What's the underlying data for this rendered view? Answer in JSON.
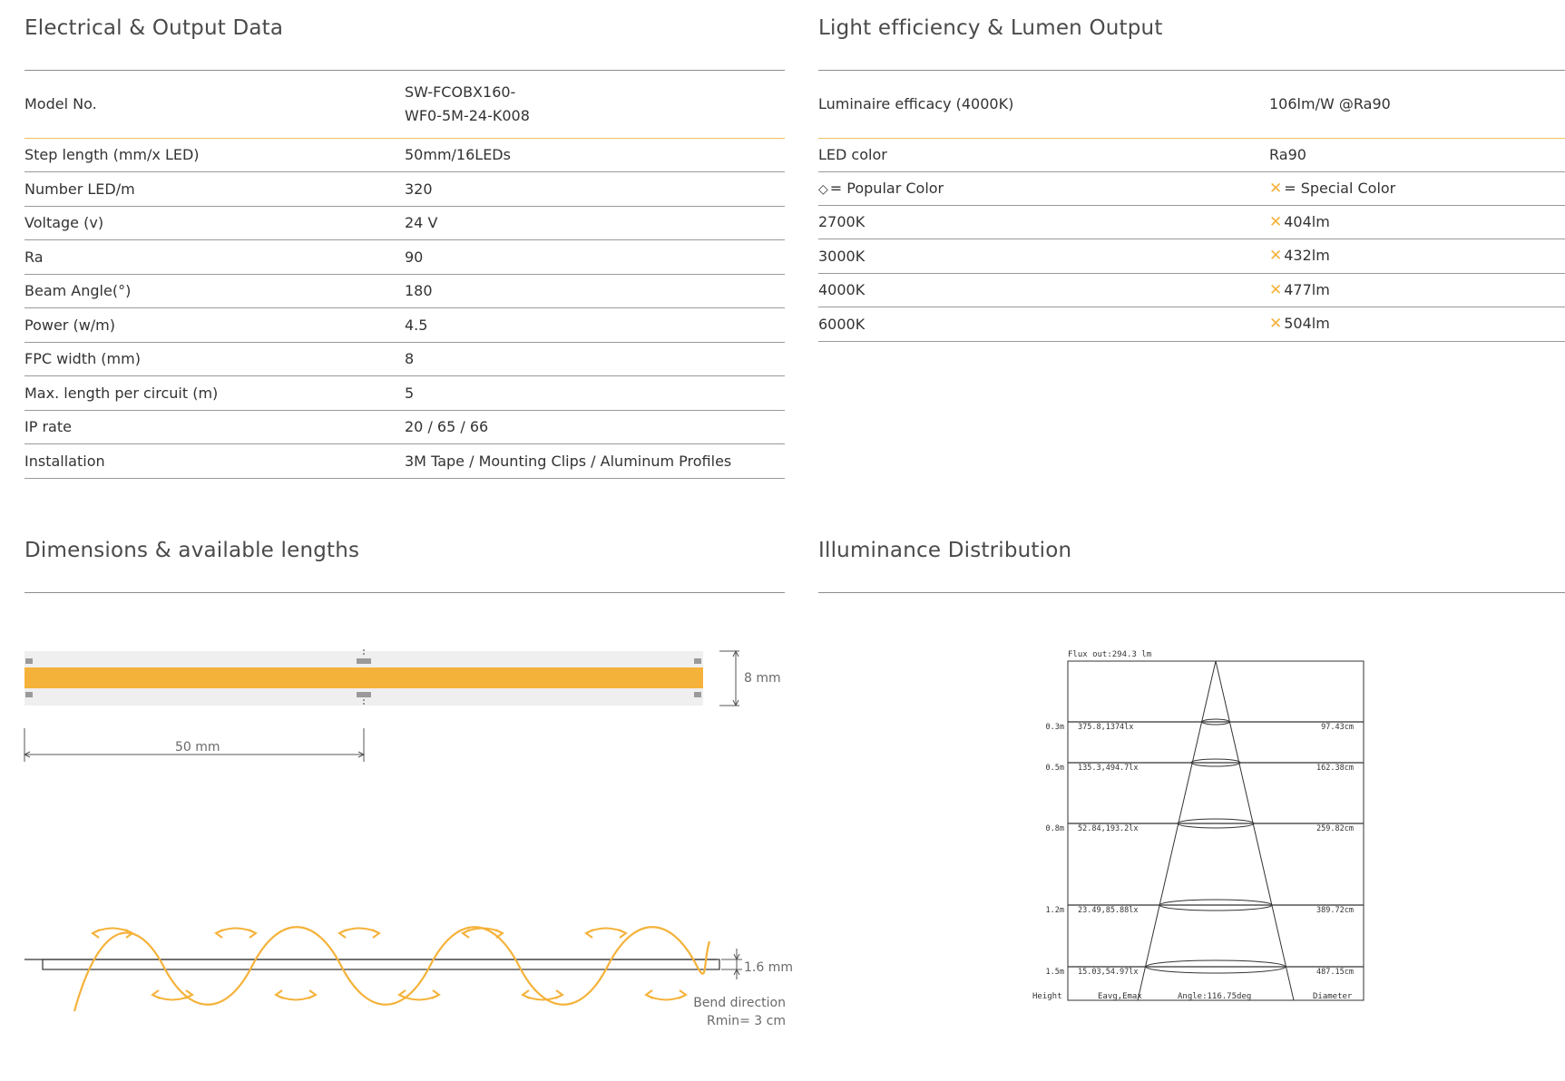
{
  "electrical": {
    "title": "Electrical & Output Data",
    "rows": [
      {
        "label": "Model No.",
        "value": "SW-FCOBX160-\nWF0-5M-24-K008"
      },
      {
        "label": "Step length (mm/x LED)",
        "value": "50mm/16LEDs"
      },
      {
        "label": "Number LED/m",
        "value": "320"
      },
      {
        "label": "Voltage (v)",
        "value": "24 V"
      },
      {
        "label": "Ra",
        "value": "90"
      },
      {
        "label": "Beam Angle(°)",
        "value": "180"
      },
      {
        "label": "Power (w/m)",
        "value": "4.5"
      },
      {
        "label": "FPC width (mm)",
        "value": "8"
      },
      {
        "label": "Max. length per circuit (m)",
        "value": "5"
      },
      {
        "label": "IP rate",
        "value": "20 / 65 / 66"
      },
      {
        "label": "Installation",
        "value": "3M Tape / Mounting Clips / Aluminum Profiles"
      }
    ]
  },
  "lumen": {
    "title": "Light efficiency & Lumen Output",
    "efficacy_label": "Luminaire efficacy (4000K)",
    "efficacy_value": "106lm/W @Ra90",
    "led_color_label": "LED color",
    "led_color_value": "Ra90",
    "legend_popular": "= Popular Color",
    "legend_special": "= Special Color",
    "cct_rows": [
      {
        "cct": "2700K",
        "lumen": "404lm"
      },
      {
        "cct": "3000K",
        "lumen": "432lm"
      },
      {
        "cct": "4000K",
        "lumen": "477lm"
      },
      {
        "cct": "6000K",
        "lumen": "504lm"
      }
    ]
  },
  "dimensions": {
    "title": "Dimensions & available lengths",
    "width_label": "8 mm",
    "step_label": "50 mm",
    "thickness_label": "1.6 mm",
    "bend_label": "Bend direction",
    "bend_radius": "Rmin= 3 cm"
  },
  "illuminance": {
    "title": "Illuminance Distribution",
    "flux": "Flux out:294.3 lm",
    "height_header": "Height",
    "eavg_header": "Eavg,Emax",
    "angle": "Angle:116.75deg",
    "diameter_header": "Diameter",
    "rows": [
      {
        "height": "0.3m",
        "lux": "375.8,1374lx",
        "diameter": "97.43cm"
      },
      {
        "height": "0.5m",
        "lux": "135.3,494.7lx",
        "diameter": "162.38cm"
      },
      {
        "height": "0.8m",
        "lux": "52.84,193.2lx",
        "diameter": "259.82cm"
      },
      {
        "height": "1.2m",
        "lux": "23.49,85.88lx",
        "diameter": "389.72cm"
      },
      {
        "height": "1.5m",
        "lux": "15.03,54.97lx",
        "diameter": "487.15cm"
      }
    ]
  },
  "colors": {
    "accent": "#f5b23a",
    "strip": "#f5b23a",
    "rule": "#8c8c8c",
    "text": "#333333"
  },
  "icons": {
    "popular": "diamond-icon",
    "special": "x-mark-icon"
  }
}
